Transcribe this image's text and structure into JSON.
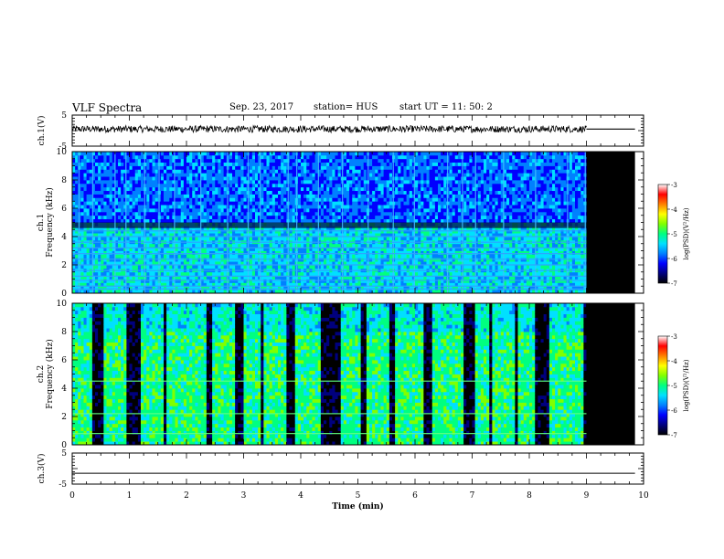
{
  "header": {
    "title": "VLF Spectra",
    "date": "Sep. 23, 2017",
    "station": "station= HUS",
    "start": "start  UT =   11: 50: 2"
  },
  "colors": {
    "trace": "#000000",
    "spectrogram_background": "#000000",
    "colormap": [
      "#000000",
      "#00007f",
      "#0000ff",
      "#0080ff",
      "#00e0ff",
      "#00ff80",
      "#80ff00",
      "#ffff00",
      "#ff8000",
      "#ff0000",
      "#ffffff"
    ]
  },
  "chart_data": [
    {
      "type": "line",
      "panel": "ch1-waveform",
      "ylabel": "ch.1(V)",
      "ylim": [
        -5,
        5
      ],
      "yticks": [
        "5",
        "-5"
      ],
      "x": [
        0,
        9.0,
        9.0,
        9.85
      ],
      "envelope_y": [
        1.1,
        1.1,
        0.5,
        0.5
      ],
      "trace_y": 0.5,
      "xlim": [
        0,
        10
      ]
    },
    {
      "type": "heatmap",
      "panel": "ch1-spectrogram",
      "ylabel": "ch.1\nFrequency (kHz)",
      "ylim": [
        0,
        10
      ],
      "yticks": [
        "0",
        "2",
        "4",
        "6",
        "8",
        "10"
      ],
      "xlim": [
        0,
        10
      ],
      "data_end_min": 9.0,
      "plot_end_min": 9.85,
      "background_log_psd": -5.9,
      "lower_band_log_psd": -5.4,
      "lower_band_top_khz": 5.0,
      "horizontal_lines_khz": [
        0.3,
        0.5,
        0.9,
        1.2,
        1.6,
        2.0,
        2.4,
        2.8,
        3.2,
        3.6,
        4.0,
        4.4
      ],
      "bright_columns_min": [
        0.12,
        0.36,
        0.75,
        0.94,
        1.27,
        1.52,
        1.79,
        2.25,
        2.72,
        3.08,
        3.29,
        3.78,
        3.93,
        4.31,
        4.73,
        5.18,
        5.62,
        5.99,
        6.57,
        6.83,
        7.06,
        7.55,
        8.11,
        8.67,
        8.98
      ],
      "colorbar": {
        "label": "log(PSD)(V²/Hz)",
        "range": [
          -7,
          -3
        ],
        "ticks": [
          "-3",
          "-4",
          "-5",
          "-6",
          "-7"
        ]
      }
    },
    {
      "type": "heatmap",
      "panel": "ch2-spectrogram",
      "ylabel": "ch.2\nFrequency (kHz)",
      "ylim": [
        0,
        10
      ],
      "yticks": [
        "0",
        "2",
        "4",
        "6",
        "8",
        "10"
      ],
      "xlim": [
        0,
        10
      ],
      "data_end_min": 9.0,
      "plot_end_min": 9.85,
      "active_intervals_min": [
        [
          0.0,
          0.35
        ],
        [
          0.55,
          0.95
        ],
        [
          1.2,
          1.6
        ],
        [
          1.65,
          2.35
        ],
        [
          2.45,
          2.85
        ],
        [
          3.0,
          3.3
        ],
        [
          3.35,
          3.75
        ],
        [
          3.9,
          4.35
        ],
        [
          4.7,
          5.05
        ],
        [
          5.15,
          5.55
        ],
        [
          5.65,
          6.15
        ],
        [
          6.3,
          6.85
        ],
        [
          7.05,
          7.3
        ],
        [
          7.35,
          7.75
        ],
        [
          7.8,
          8.1
        ],
        [
          8.35,
          8.95
        ]
      ],
      "active_log_psd": -5.0,
      "horizontal_lines_khz": [
        0.8,
        2.2,
        4.5
      ],
      "colorbar": {
        "label": "log(PSD)(V²/Hz)",
        "range": [
          -7,
          -3
        ],
        "ticks": [
          "-3",
          "-4",
          "-5",
          "-6",
          "-7"
        ]
      }
    },
    {
      "type": "line",
      "panel": "ch3-waveform",
      "ylabel": "ch.3(V)",
      "ylim": [
        -5,
        5
      ],
      "yticks": [
        "5",
        "-5"
      ],
      "x": [
        0,
        9.85
      ],
      "y": [
        -1.5,
        -1.5
      ],
      "xlim": [
        0,
        10
      ],
      "xlabel": "Time (min)",
      "xticks": [
        "0",
        "1",
        "2",
        "3",
        "4",
        "5",
        "6",
        "7",
        "8",
        "9",
        "10"
      ]
    }
  ]
}
